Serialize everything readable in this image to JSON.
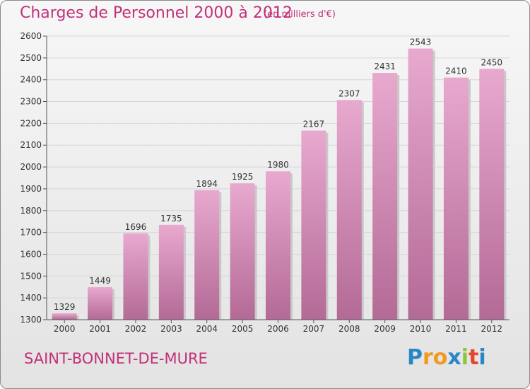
{
  "header": {
    "title": "Charges de Personnel 2000 à 2012",
    "subtitle": "(en milliers d'€)"
  },
  "footer": {
    "place": "SAINT-BONNET-DE-MURE"
  },
  "logo": {
    "letters": [
      "P",
      "r",
      "o",
      "x",
      "i",
      "t",
      "i"
    ],
    "colors": [
      "#2a86c7",
      "#f29a1f",
      "#f29a1f",
      "#2a86c7",
      "#8cc63f",
      "#e8452e",
      "#2a86c7"
    ]
  },
  "colors": {
    "accent": "#c2307a",
    "bar_top": "#e8a9cf",
    "bar_bottom": "#b36a96"
  },
  "chart_data": {
    "type": "bar",
    "title": "Charges de Personnel 2000 à 2012",
    "subtitle": "(en milliers d'€)",
    "categories": [
      "2000",
      "2001",
      "2002",
      "2003",
      "2004",
      "2005",
      "2006",
      "2007",
      "2008",
      "2009",
      "2010",
      "2011",
      "2012"
    ],
    "values": [
      1329,
      1449,
      1696,
      1735,
      1894,
      1925,
      1980,
      2167,
      2307,
      2431,
      2543,
      2410,
      2450
    ],
    "ylim": [
      1300,
      2600
    ],
    "yticks": [
      1300,
      1400,
      1500,
      1600,
      1700,
      1800,
      1900,
      2000,
      2100,
      2200,
      2300,
      2400,
      2500,
      2600
    ],
    "grid": true,
    "data_labels": true
  }
}
